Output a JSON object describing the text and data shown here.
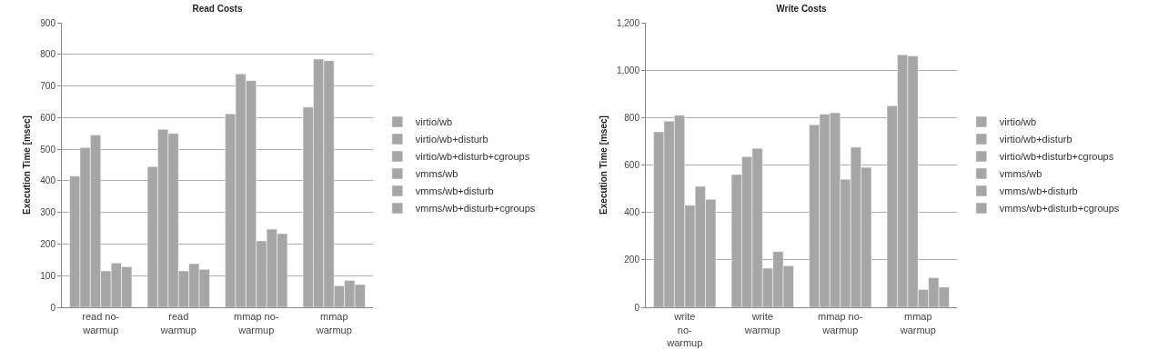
{
  "chart_data": [
    {
      "type": "bar",
      "title": "Read Costs",
      "ylabel": "Execution Time [msec]",
      "categories": [
        "read no-warmup",
        "read warmup",
        "mmap no-warmup",
        "mmap warmup"
      ],
      "series": [
        {
          "name": "virtio/wb",
          "color": "#a6a6a6",
          "values": [
            415,
            445,
            612,
            633
          ]
        },
        {
          "name": "virtio/wb+disturb",
          "color": "#a6a6a6",
          "values": [
            505,
            563,
            738,
            785
          ]
        },
        {
          "name": "virtio/wb+disturb+cgroups",
          "color": "#a6a6a6",
          "values": [
            545,
            550,
            717,
            780
          ]
        },
        {
          "name": "vmms/wb",
          "color": "#a6a6a6",
          "values": [
            115,
            115,
            210,
            68
          ]
        },
        {
          "name": "vmms/wb+disturb",
          "color": "#a6a6a6",
          "values": [
            140,
            138,
            247,
            85
          ]
        },
        {
          "name": "vmms/wb+disturb+cgroups",
          "color": "#a6a6a6",
          "values": [
            128,
            120,
            233,
            72
          ]
        }
      ],
      "ylim": [
        0,
        900
      ],
      "yticks": [
        0,
        100,
        200,
        300,
        400,
        500,
        600,
        700,
        800,
        900
      ],
      "grid": "y",
      "legend": "right"
    },
    {
      "type": "bar",
      "title": "Write Costs",
      "ylabel": "Execution Time [msec]",
      "categories": [
        "write no-warmup",
        "write warmup",
        "mmap no-warmup",
        "mmap warmup"
      ],
      "series": [
        {
          "name": "virtio/wb",
          "color": "#a6a6a6",
          "values": [
            740,
            560,
            770,
            850
          ]
        },
        {
          "name": "virtio/wb+disturb",
          "color": "#a6a6a6",
          "values": [
            785,
            635,
            815,
            1065
          ]
        },
        {
          "name": "virtio/wb+disturb+cgroups",
          "color": "#a6a6a6",
          "values": [
            810,
            670,
            820,
            1060
          ]
        },
        {
          "name": "vmms/wb",
          "color": "#a6a6a6",
          "values": [
            430,
            165,
            540,
            75
          ]
        },
        {
          "name": "vmms/wb+disturb",
          "color": "#a6a6a6",
          "values": [
            510,
            235,
            675,
            125
          ]
        },
        {
          "name": "vmms/wb+disturb+cgroups",
          "color": "#a6a6a6",
          "values": [
            455,
            175,
            590,
            85
          ]
        }
      ],
      "ylim": [
        0,
        1200
      ],
      "yticks": [
        0,
        200,
        400,
        600,
        800,
        {
          "value": 1000,
          "label": "1,000"
        },
        {
          "value": 1200,
          "label": "1,200"
        }
      ],
      "grid": "y",
      "legend": "right"
    }
  ]
}
